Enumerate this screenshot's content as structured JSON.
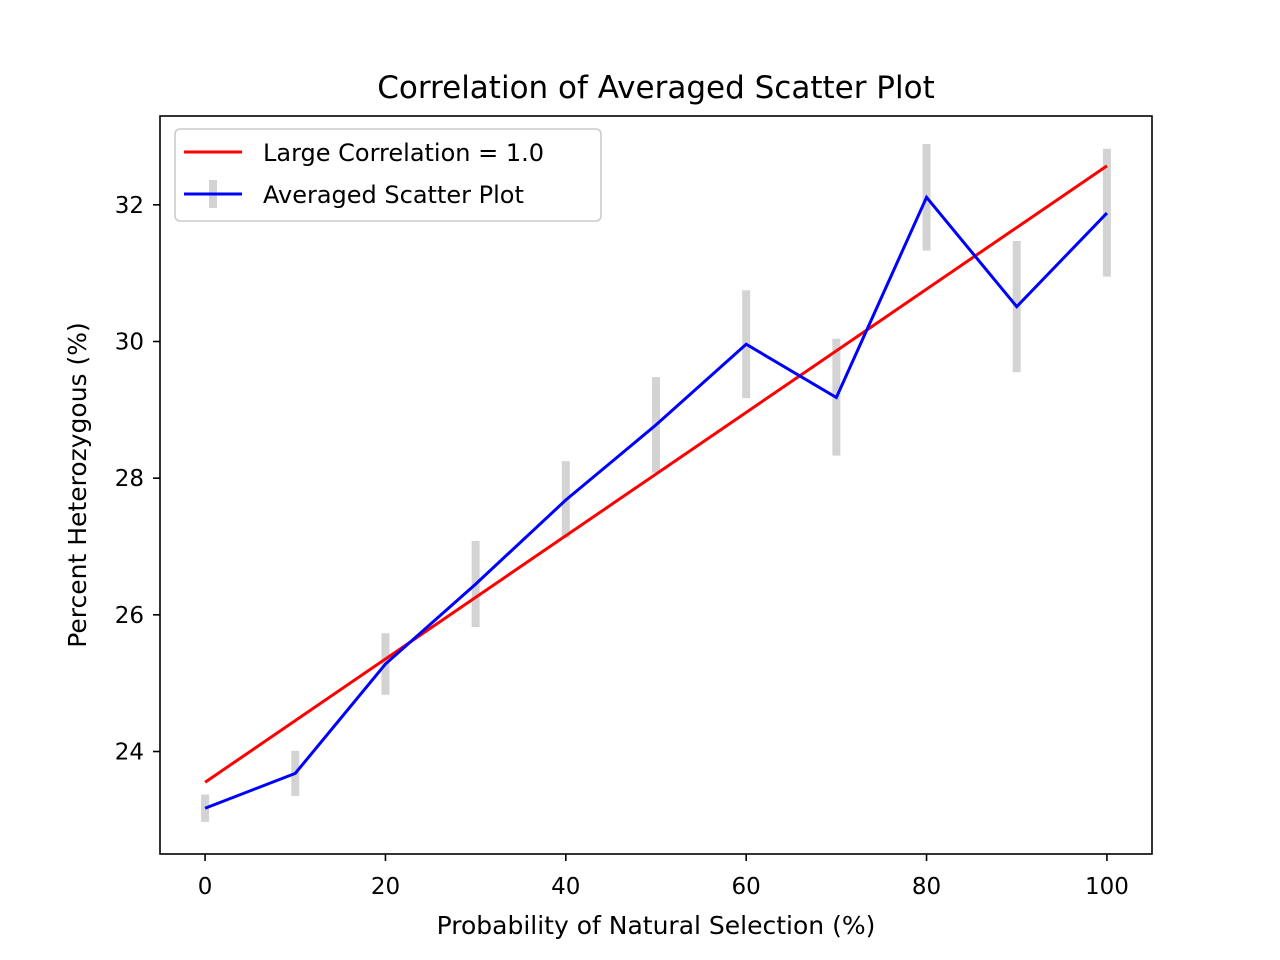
{
  "chart_data": {
    "type": "line",
    "title": "Correlation of Averaged Scatter Plot",
    "xlabel": "Probability of Natural Selection (%)",
    "ylabel": "Percent Heterozygous (%)",
    "xlim": [
      -5,
      105
    ],
    "ylim": [
      22.5,
      33.3
    ],
    "xticks": [
      0,
      20,
      40,
      60,
      80,
      100
    ],
    "yticks": [
      24,
      26,
      28,
      30,
      32
    ],
    "grid": false,
    "legend_position": "top-left",
    "x": [
      0,
      10,
      20,
      30,
      40,
      50,
      60,
      70,
      80,
      90,
      100
    ],
    "series": [
      {
        "name": "Large Correlation = 1.0",
        "color": "#ff0000",
        "kind": "line",
        "x": [
          0,
          100
        ],
        "values": [
          23.55,
          32.57
        ]
      },
      {
        "name": "Averaged Scatter Plot",
        "color": "#0000ff",
        "kind": "line-errorbar",
        "errorbar_color": "#d3d3d3",
        "values": [
          23.17,
          23.68,
          25.28,
          26.45,
          27.68,
          28.78,
          29.96,
          29.18,
          32.11,
          30.51,
          31.88
        ],
        "err_low": [
          22.97,
          23.35,
          24.83,
          25.82,
          27.12,
          28.08,
          29.17,
          28.33,
          31.33,
          29.55,
          30.95
        ],
        "err_high": [
          23.37,
          24.01,
          25.73,
          27.08,
          28.25,
          29.48,
          30.75,
          30.04,
          32.89,
          31.47,
          32.82
        ]
      }
    ]
  }
}
